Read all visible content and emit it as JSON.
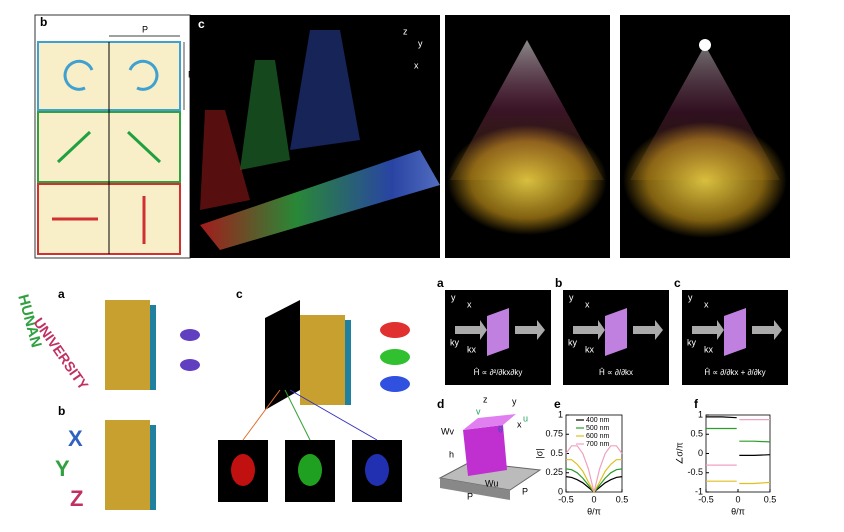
{
  "top_b": {
    "label": "b",
    "period_h": "P",
    "period_v": "P"
  },
  "top_c": {
    "label": "c",
    "axes": [
      "z",
      "y",
      "x"
    ]
  },
  "bottom_left": {
    "label_a": "a",
    "label_b": "b",
    "label_c": "c",
    "word1": "HUNAN",
    "word2": "UNIVERSITY",
    "letters": [
      "X",
      "Y",
      "Z"
    ]
  },
  "right_panels": [
    {
      "label": "a",
      "axes": [
        "y",
        "x",
        "ky",
        "kx"
      ],
      "formula": "Ĥ ∝ ∂²/∂kx∂ky"
    },
    {
      "label": "b",
      "axes": [
        "y",
        "x",
        "ky",
        "kx"
      ],
      "formula": "Ĥ ∝ ∂/∂kx"
    },
    {
      "label": "c",
      "axes": [
        "y",
        "x",
        "ky",
        "kx"
      ],
      "formula": "Ĥ ∝ ∂/∂kx + ∂/∂ky"
    }
  ],
  "diagram_d": {
    "label": "d",
    "axes": [
      "z",
      "y",
      "x",
      "v",
      "u",
      "θ"
    ],
    "dims": [
      "Wv",
      "h",
      "Wu",
      "P",
      "P"
    ]
  },
  "chart_data": [
    {
      "type": "line",
      "label": "e",
      "x_label": "θ/π",
      "y_label": "|σ|",
      "x": [
        -0.5,
        -0.4,
        -0.3,
        -0.2,
        -0.1,
        0,
        0.1,
        0.2,
        0.3,
        0.4,
        0.5
      ],
      "xlim": [
        -0.5,
        0.5
      ],
      "xticks": [
        -0.5,
        0,
        0.5
      ],
      "ylim": [
        0,
        1
      ],
      "yticks": [
        0,
        0.25,
        0.5,
        0.75,
        1
      ],
      "legend": "upper center",
      "series": [
        {
          "name": "400 nm",
          "color": "#000000",
          "values": [
            0.2,
            0.19,
            0.16,
            0.12,
            0.06,
            0,
            0.06,
            0.12,
            0.16,
            0.19,
            0.2
          ]
        },
        {
          "name": "500 nm",
          "color": "#2a9d2a",
          "values": [
            0.3,
            0.29,
            0.25,
            0.18,
            0.09,
            0,
            0.09,
            0.18,
            0.25,
            0.29,
            0.3
          ]
        },
        {
          "name": "600 nm",
          "color": "#e0c020",
          "values": [
            0.42,
            0.42,
            0.36,
            0.27,
            0.13,
            0,
            0.13,
            0.27,
            0.36,
            0.42,
            0.42
          ]
        },
        {
          "name": "700 nm",
          "color": "#f0a0c0",
          "values": [
            0.5,
            0.6,
            0.6,
            0.5,
            0.3,
            0,
            0.3,
            0.5,
            0.6,
            0.6,
            0.5
          ]
        }
      ]
    },
    {
      "type": "line",
      "label": "f",
      "x_label": "θ/π",
      "y_label": "∠σ/π",
      "x": [
        -0.5,
        -0.25,
        -0.02,
        0,
        0.02,
        0.25,
        0.5
      ],
      "xlim": [
        -0.5,
        0.5
      ],
      "xticks": [
        -0.5,
        0,
        0.5
      ],
      "ylim": [
        -1,
        1
      ],
      "yticks": [
        -1,
        -0.5,
        0,
        0.5,
        1
      ],
      "series": [
        {
          "name": "400 nm",
          "color": "#000000",
          "values": [
            0.95,
            0.95,
            0.93,
            null,
            -0.05,
            -0.05,
            -0.03
          ]
        },
        {
          "name": "500 nm",
          "color": "#2a9d2a",
          "values": [
            0.65,
            0.65,
            0.65,
            null,
            0.32,
            0.32,
            0.3
          ]
        },
        {
          "name": "600 nm",
          "color": "#e0c020",
          "values": [
            -0.72,
            -0.72,
            -0.72,
            null,
            -0.78,
            -0.78,
            -0.75
          ]
        },
        {
          "name": "700 nm",
          "color": "#f0a0c0",
          "values": [
            -0.3,
            -0.3,
            -0.3,
            null,
            0.88,
            0.88,
            0.88
          ]
        }
      ]
    }
  ]
}
